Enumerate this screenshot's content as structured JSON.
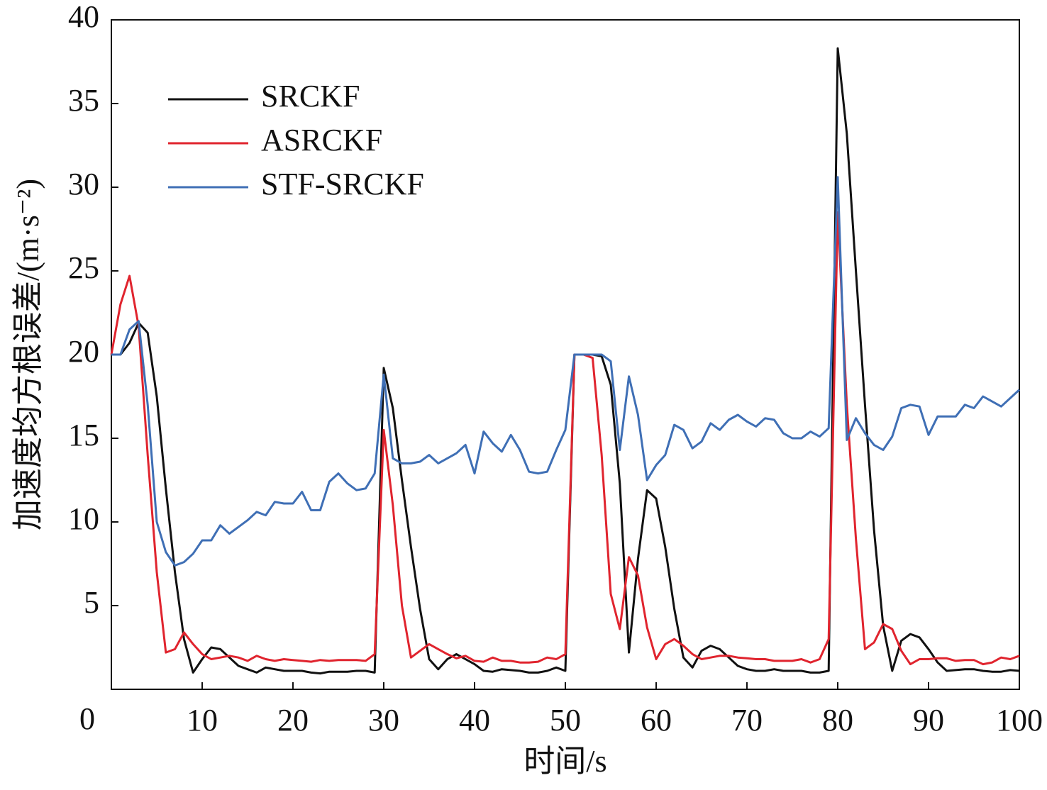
{
  "chart_data": {
    "type": "line",
    "xlabel": "时间/s",
    "ylabel": "加速度均方根误差/(m·s⁻²)",
    "xlim": [
      0,
      100
    ],
    "xticks": [
      10,
      20,
      30,
      40,
      50,
      60,
      70,
      80,
      90,
      100
    ],
    "ylim": [
      0,
      40
    ],
    "yticks": [
      0,
      5,
      10,
      15,
      20,
      25,
      30,
      35,
      40
    ],
    "grid": false,
    "legend": "upper left",
    "x": [
      0,
      1,
      2,
      3,
      4,
      5,
      6,
      7,
      8,
      9,
      10,
      11,
      12,
      13,
      14,
      15,
      16,
      17,
      18,
      19,
      20,
      21,
      22,
      23,
      24,
      25,
      26,
      27,
      28,
      29,
      30,
      31,
      32,
      33,
      34,
      35,
      36,
      37,
      38,
      39,
      40,
      41,
      42,
      43,
      44,
      45,
      46,
      47,
      48,
      49,
      50,
      51,
      52,
      53,
      54,
      55,
      56,
      57,
      58,
      59,
      60,
      61,
      62,
      63,
      64,
      65,
      66,
      67,
      68,
      69,
      70,
      71,
      72,
      73,
      74,
      75,
      76,
      77,
      78,
      79,
      80,
      81,
      82,
      83,
      84,
      85,
      86,
      87,
      88,
      89,
      90,
      91,
      92,
      93,
      94,
      95,
      96,
      97,
      98,
      99,
      100
    ],
    "series": [
      {
        "name": "SRCKF",
        "color": "#111111",
        "values": [
          20,
          20,
          20.7,
          21.9,
          21.3,
          17.5,
          12,
          7,
          3,
          1,
          1.8,
          2.5,
          2.4,
          1.9,
          1.4,
          1.2,
          1.0,
          1.3,
          1.2,
          1.1,
          1.1,
          1.1,
          1.0,
          0.95,
          1.05,
          1.05,
          1.05,
          1.1,
          1.1,
          1.0,
          19.2,
          16.8,
          12.5,
          8.5,
          4.8,
          1.8,
          1.2,
          1.8,
          2.1,
          1.8,
          1.5,
          1.1,
          1.05,
          1.2,
          1.15,
          1.1,
          1.0,
          1.0,
          1.1,
          1.3,
          1.1,
          20,
          20,
          20,
          19.9,
          18.2,
          12.3,
          2.2,
          7.8,
          11.9,
          11.4,
          8.5,
          4.8,
          1.9,
          1.3,
          2.3,
          2.6,
          2.4,
          1.9,
          1.4,
          1.2,
          1.1,
          1.1,
          1.2,
          1.1,
          1.1,
          1.1,
          1.0,
          1.0,
          1.1,
          38.3,
          33.2,
          25,
          17,
          9.5,
          3.8,
          1.1,
          2.9,
          3.3,
          3.1,
          2.4,
          1.6,
          1.1,
          1.15,
          1.2,
          1.2,
          1.1,
          1.05,
          1.05,
          1.15,
          1.1
        ]
      },
      {
        "name": "ASRCKF",
        "color": "#e0242e",
        "values": [
          20,
          23,
          24.7,
          21.7,
          14,
          7,
          2.2,
          2.4,
          3.4,
          2.7,
          2.1,
          1.8,
          1.9,
          2.0,
          1.9,
          1.7,
          2.0,
          1.8,
          1.7,
          1.8,
          1.75,
          1.7,
          1.65,
          1.75,
          1.7,
          1.75,
          1.75,
          1.75,
          1.7,
          2.1,
          15.5,
          11,
          5,
          1.9,
          2.3,
          2.7,
          2.4,
          2.1,
          1.85,
          2.0,
          1.7,
          1.65,
          1.9,
          1.7,
          1.7,
          1.6,
          1.6,
          1.65,
          1.9,
          1.8,
          2.1,
          20,
          20,
          19.8,
          14,
          5.7,
          3.6,
          7.9,
          6.8,
          3.7,
          1.8,
          2.7,
          3.0,
          2.6,
          2.1,
          1.8,
          1.9,
          2.0,
          2.0,
          1.9,
          1.85,
          1.8,
          1.8,
          1.7,
          1.7,
          1.7,
          1.8,
          1.6,
          1.8,
          3.0,
          28.5,
          17,
          9,
          2.4,
          2.8,
          3.9,
          3.6,
          2.3,
          1.5,
          1.8,
          1.8,
          1.85,
          1.85,
          1.7,
          1.75,
          1.75,
          1.5,
          1.6,
          1.9,
          1.8,
          2.0
        ]
      },
      {
        "name": "STF-SRCKF",
        "color": "#3f6fb5",
        "values": [
          20,
          20,
          21.5,
          22,
          17,
          10,
          8.2,
          7.4,
          7.6,
          8.1,
          8.9,
          8.9,
          9.8,
          9.3,
          9.7,
          10.1,
          10.6,
          10.4,
          11.2,
          11.1,
          11.1,
          11.8,
          10.7,
          10.7,
          12.4,
          12.9,
          12.3,
          11.9,
          12.0,
          12.9,
          18.8,
          13.8,
          13.5,
          13.5,
          13.6,
          14.0,
          13.5,
          13.8,
          14.1,
          14.6,
          12.9,
          15.4,
          14.7,
          14.2,
          15.2,
          14.3,
          13.0,
          12.9,
          13.0,
          14.3,
          15.5,
          20,
          20,
          20,
          20,
          19.6,
          14.3,
          18.7,
          16.4,
          12.5,
          13.4,
          14.0,
          15.8,
          15.5,
          14.4,
          14.8,
          15.9,
          15.5,
          16.1,
          16.4,
          16.0,
          15.7,
          16.2,
          16.1,
          15.3,
          15.0,
          15.0,
          15.4,
          15.1,
          15.6,
          30.6,
          14.9,
          16.2,
          15.3,
          14.6,
          14.3,
          15.1,
          16.8,
          17.0,
          16.9,
          15.2,
          16.3,
          16.3,
          16.3,
          17.0,
          16.8,
          17.5,
          17.2,
          16.9,
          17.4,
          17.9
        ]
      }
    ]
  }
}
